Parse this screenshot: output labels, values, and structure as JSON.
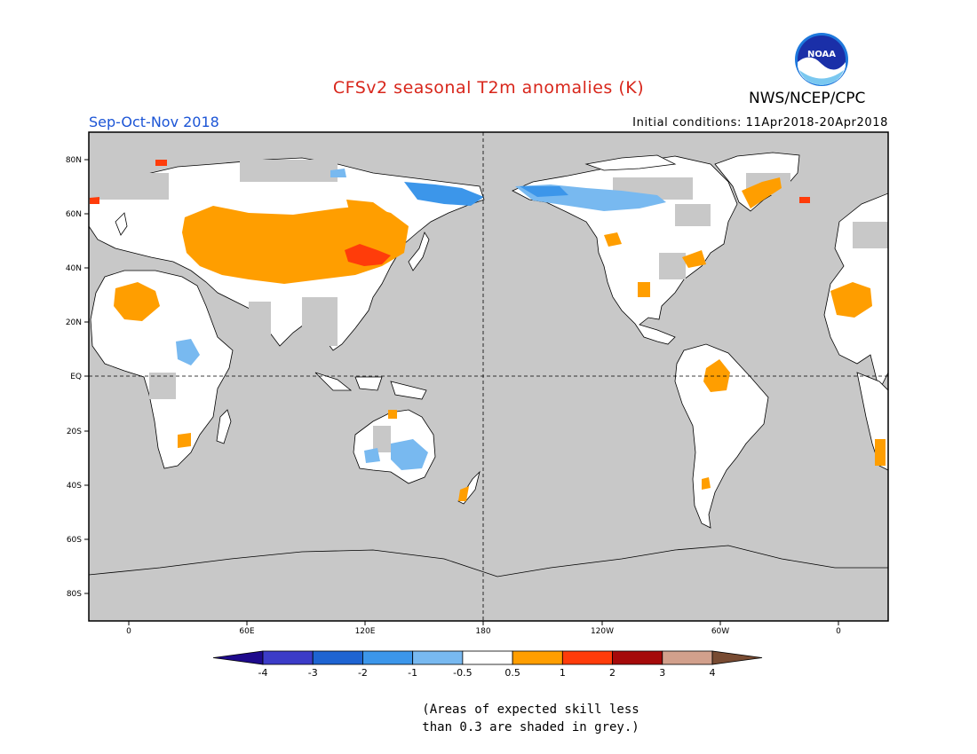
{
  "title": "CFSv2 seasonal T2m anomalies (K)",
  "organization": "NWS/NCEP/CPC",
  "logo_text": "NOAA",
  "season": "Sep-Oct-Nov 2018",
  "initial_conditions": "Initial conditions: 11Apr2018-20Apr2018",
  "colors": {
    "title": "#d8261b",
    "season": "#1c55d6",
    "ocean_grey": "#c8c8c8",
    "land_white": "#ffffff"
  },
  "longitude_labels": [
    "0",
    "60E",
    "120E",
    "180",
    "120W",
    "60W",
    "0"
  ],
  "latitude_labels": [
    "80N",
    "60N",
    "40N",
    "20N",
    "EQ",
    "20S",
    "40S",
    "60S",
    "80S"
  ],
  "colorbar": {
    "labels": [
      "-4",
      "-3",
      "-2",
      "-1",
      "-0.5",
      "0.5",
      "1",
      "2",
      "3",
      "4"
    ],
    "colors": [
      "#1e0a8c",
      "#3c3cc8",
      "#1e64d2",
      "#3c96ea",
      "#78b9f0",
      "#ffffff",
      "#ff9e00",
      "#ff3c0a",
      "#a50a0a",
      "#d2a08c",
      "#784b32"
    ]
  },
  "note": {
    "line1": "(Areas of expected skill less",
    "line2": "than 0.3 are shaded in grey.)"
  }
}
